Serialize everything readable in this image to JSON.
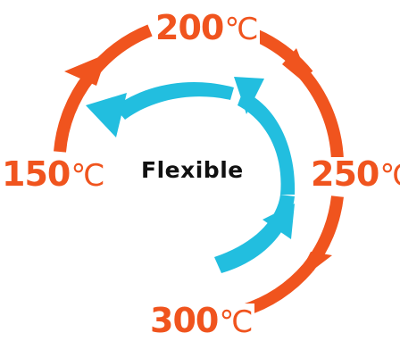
{
  "center_label": "Flexible",
  "temperatures": [
    {
      "value": "200",
      "unit": "℃"
    },
    {
      "value": "250",
      "unit": "℃"
    },
    {
      "value": "300",
      "unit": "℃"
    },
    {
      "value": "150",
      "unit": "℃"
    }
  ],
  "colors": {
    "outer_cycle": "#f0541e",
    "inner_swirl": "#22bedf",
    "label_text": "#111111"
  }
}
